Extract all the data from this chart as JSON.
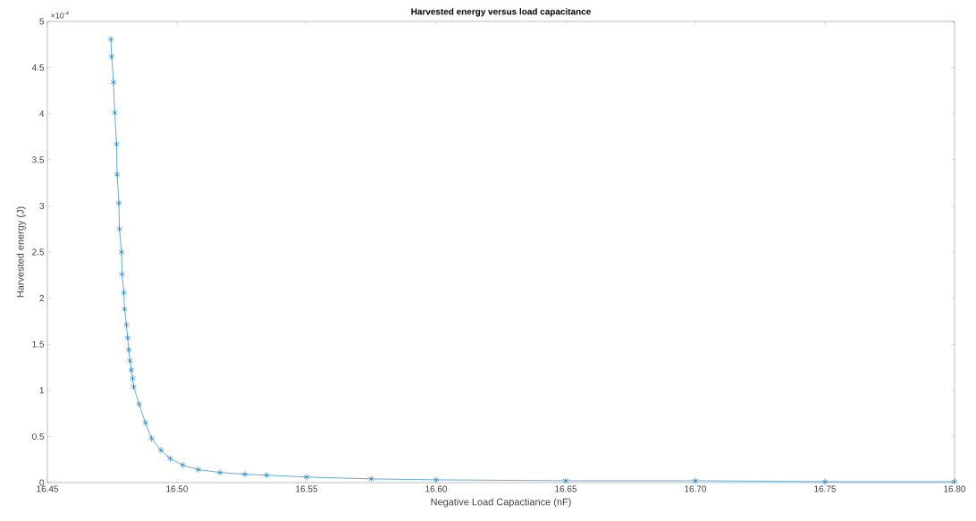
{
  "chart_data": {
    "type": "line",
    "title": "**Harvested energy versus load capacitance**",
    "xlabel": "Negative Load Capactiance (nF)",
    "ylabel": "Harvested energy (J)",
    "annotations": [
      "×10$^{-4}$"
    ],
    "series": [
      {
        "color": "#0072bd",
        "x": [
          16.4745,
          16.4748,
          16.4755,
          16.476,
          16.4767,
          16.4769,
          16.4776,
          16.4778,
          16.4786,
          16.4788,
          16.4795,
          16.4798,
          16.4805,
          16.481,
          16.4814,
          16.4819,
          16.4824,
          16.4829,
          16.4833,
          16.4854,
          16.4878,
          16.4902,
          16.4938,
          16.4974,
          16.5022,
          16.5082,
          16.5166,
          16.5262,
          16.5346,
          16.55,
          16.575,
          16.6,
          16.65,
          16.7,
          16.75,
          16.8
        ],
        "values": [
          4.81,
          4.62,
          4.34,
          4.01,
          3.67,
          3.34,
          3.03,
          2.75,
          2.5,
          2.26,
          2.06,
          1.88,
          1.71,
          1.57,
          1.44,
          1.32,
          1.22,
          1.13,
          1.04,
          0.85,
          0.65,
          0.48,
          0.35,
          0.26,
          0.19,
          0.14,
          0.11,
          0.09,
          0.08,
          0.06,
          0.04,
          0.03,
          0.02,
          0.02,
          0.01,
          0.01
        ]
      }
    ],
    "marker": "cross",
    "line_style": "solid",
    "grid": false,
    "xlim": [
      16.45,
      16.8
    ],
    "ylim": [
      0,
      5
    ],
    "xticks": [
      {
        "value": 16.45,
        "label": "16.45"
      },
      {
        "value": 16.5,
        "label": "16.50"
      },
      {
        "value": 16.55,
        "label": "16.55"
      },
      {
        "value": 16.6,
        "label": "16.60"
      },
      {
        "value": 16.65,
        "label": "16.65"
      },
      {
        "value": 16.7,
        "label": "16.70"
      },
      {
        "value": 16.75,
        "label": "16.75"
      },
      {
        "value": 16.8,
        "label": "16.80"
      }
    ],
    "yticks": [
      0,
      0.5,
      1,
      1.5,
      2,
      2.5,
      3,
      3.5,
      4,
      4.5,
      5
    ]
  }
}
